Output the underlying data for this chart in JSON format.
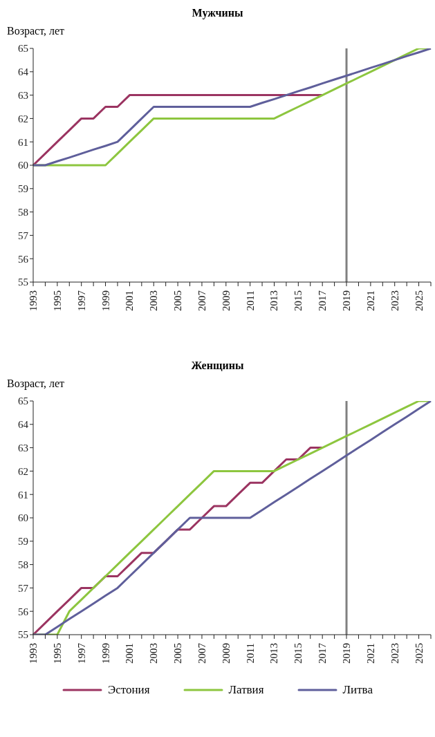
{
  "chart_data": [
    {
      "type": "line",
      "title": "Мужчины",
      "ylabel": "Возраст, лет",
      "categories": [
        "1993",
        null,
        "1995",
        null,
        "1997",
        null,
        "1999",
        null,
        "2001",
        null,
        "2003",
        null,
        "2005",
        null,
        "2007",
        null,
        "2009",
        null,
        "2011",
        null,
        "2013",
        null,
        "2015",
        null,
        "2017",
        null,
        "2019",
        null,
        "2021",
        null,
        "2023",
        null,
        "2025",
        null
      ],
      "ylim": [
        55,
        65
      ],
      "yticks": [
        55,
        56,
        57,
        58,
        59,
        60,
        61,
        62,
        63,
        64,
        65
      ],
      "grid": false,
      "legend": false,
      "marker": "none",
      "line_style": "solid",
      "ref_lines": [
        {
          "axis": "x",
          "value": "2019",
          "color": "#808080"
        }
      ],
      "series": [
        {
          "color": "#9b3461",
          "values": [
            60,
            60.5,
            61,
            61.5,
            62,
            62,
            62.5,
            62.5,
            63,
            63,
            63,
            63,
            63,
            63,
            63,
            63,
            63,
            63,
            63,
            63,
            63,
            63,
            63,
            63,
            63,
            null,
            null,
            null,
            null,
            null,
            null,
            null,
            null,
            null
          ]
        },
        {
          "color": "#8dc63f",
          "values": [
            60,
            60,
            60,
            60,
            60,
            60,
            60,
            60.5,
            61,
            61.5,
            62,
            62,
            62,
            62,
            62,
            62,
            62,
            62,
            62,
            62,
            62,
            62.25,
            62.5,
            62.75,
            63,
            63.25,
            63.5,
            63.75,
            64,
            64.25,
            64.5,
            64.75,
            65,
            65
          ]
        },
        {
          "color": "#5f5f9b",
          "values": [
            60,
            60,
            60.17,
            60.33,
            60.5,
            60.67,
            60.83,
            61,
            61.5,
            62,
            62.5,
            62.5,
            62.5,
            62.5,
            62.5,
            62.5,
            62.5,
            62.5,
            62.5,
            62.67,
            62.83,
            63,
            63.17,
            63.33,
            63.5,
            63.67,
            63.83,
            64,
            64.17,
            64.33,
            64.5,
            64.67,
            64.83,
            65
          ]
        }
      ]
    },
    {
      "type": "line",
      "title": "Женщины",
      "ylabel": "Возраст, лет",
      "categories": [
        "1993",
        null,
        "1995",
        null,
        "1997",
        null,
        "1999",
        null,
        "2001",
        null,
        "2003",
        null,
        "2005",
        null,
        "2007",
        null,
        "2009",
        null,
        "2011",
        null,
        "2013",
        null,
        "2015",
        null,
        "2017",
        null,
        "2019",
        null,
        "2021",
        null,
        "2023",
        null,
        "2025",
        null
      ],
      "ylim": [
        55,
        65
      ],
      "yticks": [
        55,
        56,
        57,
        58,
        59,
        60,
        61,
        62,
        63,
        64,
        65
      ],
      "grid": false,
      "legend": "bottom",
      "marker": "none",
      "line_style": "solid",
      "ref_lines": [
        {
          "axis": "x",
          "value": "2019",
          "color": "#808080"
        }
      ],
      "series": [
        {
          "name": "Эстония",
          "color": "#9b3461",
          "values": [
            55,
            55.5,
            56,
            56.5,
            57,
            57,
            57.5,
            57.5,
            58,
            58.5,
            58.5,
            59,
            59.5,
            59.5,
            60,
            60.5,
            60.5,
            61,
            61.5,
            61.5,
            62,
            62.5,
            62.5,
            63,
            63,
            null,
            null,
            null,
            null,
            null,
            null,
            null,
            null,
            null
          ]
        },
        {
          "name": "Латвия",
          "color": "#8dc63f",
          "values": [
            55,
            55,
            55,
            56,
            56.5,
            57,
            57.5,
            58,
            58.5,
            59,
            59.5,
            60,
            60.5,
            61,
            61.5,
            62,
            62,
            62,
            62,
            62,
            62,
            62.25,
            62.5,
            62.75,
            63,
            63.25,
            63.5,
            63.75,
            64,
            64.25,
            64.5,
            64.75,
            65,
            65
          ]
        },
        {
          "name": "Литва",
          "color": "#5f5f9b",
          "values": [
            55,
            55,
            55.33,
            55.67,
            56,
            56.33,
            56.67,
            57,
            57.5,
            58,
            58.5,
            59,
            59.5,
            60,
            60,
            60,
            60,
            60,
            60,
            60.33,
            60.67,
            61,
            61.33,
            61.67,
            62,
            62.33,
            62.67,
            63,
            63.33,
            63.67,
            64,
            64.33,
            64.67,
            65
          ]
        }
      ]
    }
  ]
}
